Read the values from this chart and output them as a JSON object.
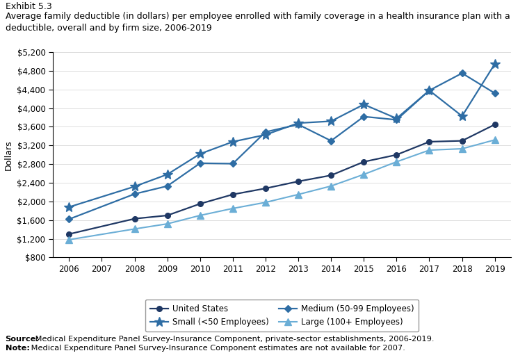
{
  "years": [
    2006,
    2007,
    2008,
    2009,
    2010,
    2011,
    2012,
    2013,
    2014,
    2015,
    2016,
    2017,
    2018,
    2019
  ],
  "united_states": {
    "label": "United States",
    "color": "#1f3864",
    "marker": "o",
    "markersize": 5.5,
    "linewidth": 1.6,
    "values": [
      1300,
      null,
      1630,
      1700,
      1950,
      2150,
      2280,
      2430,
      2560,
      2850,
      3000,
      3280,
      3300,
      3650
    ]
  },
  "small": {
    "label": "Small (<50 Employees)",
    "color": "#2e6da4",
    "marker": "*",
    "markersize": 10,
    "linewidth": 1.6,
    "values": [
      1880,
      null,
      2320,
      2580,
      3020,
      3280,
      3430,
      3680,
      3720,
      4080,
      3780,
      4380,
      3830,
      4950
    ]
  },
  "medium": {
    "label": "Medium (50-99 Employees)",
    "color": "#2e6da4",
    "marker": "D",
    "markersize": 5.5,
    "linewidth": 1.6,
    "values": [
      1620,
      null,
      2160,
      2330,
      2820,
      2810,
      3490,
      3650,
      3300,
      3820,
      3750,
      4380,
      4750,
      4320
    ]
  },
  "large": {
    "label": "Large (100+ Employees)",
    "color": "#6baed6",
    "marker": "^",
    "markersize": 6.5,
    "linewidth": 1.5,
    "values": [
      1180,
      null,
      1410,
      1520,
      1700,
      1850,
      1980,
      2150,
      2330,
      2580,
      2850,
      3100,
      3130,
      3320
    ]
  },
  "ylim": [
    800,
    5200
  ],
  "yticks": [
    800,
    1200,
    1600,
    2000,
    2400,
    2800,
    3200,
    3600,
    4000,
    4400,
    4800,
    5200
  ],
  "exhibit_title": "Exhibit 5.3",
  "chart_title": "Average family deductible (in dollars) per employee enrolled with family coverage in a health insurance plan with a\ndeductible, overall and by firm size, 2006-2019",
  "ylabel": "Dollars",
  "source_bold": "Source:",
  "source_rest": " Medical Expenditure Panel Survey-Insurance Component, private-sector establishments, 2006-2019.",
  "note_bold": "Note:",
  "note_rest": " Medical Expenditure Panel Survey-Insurance Component estimates are not available for 2007."
}
